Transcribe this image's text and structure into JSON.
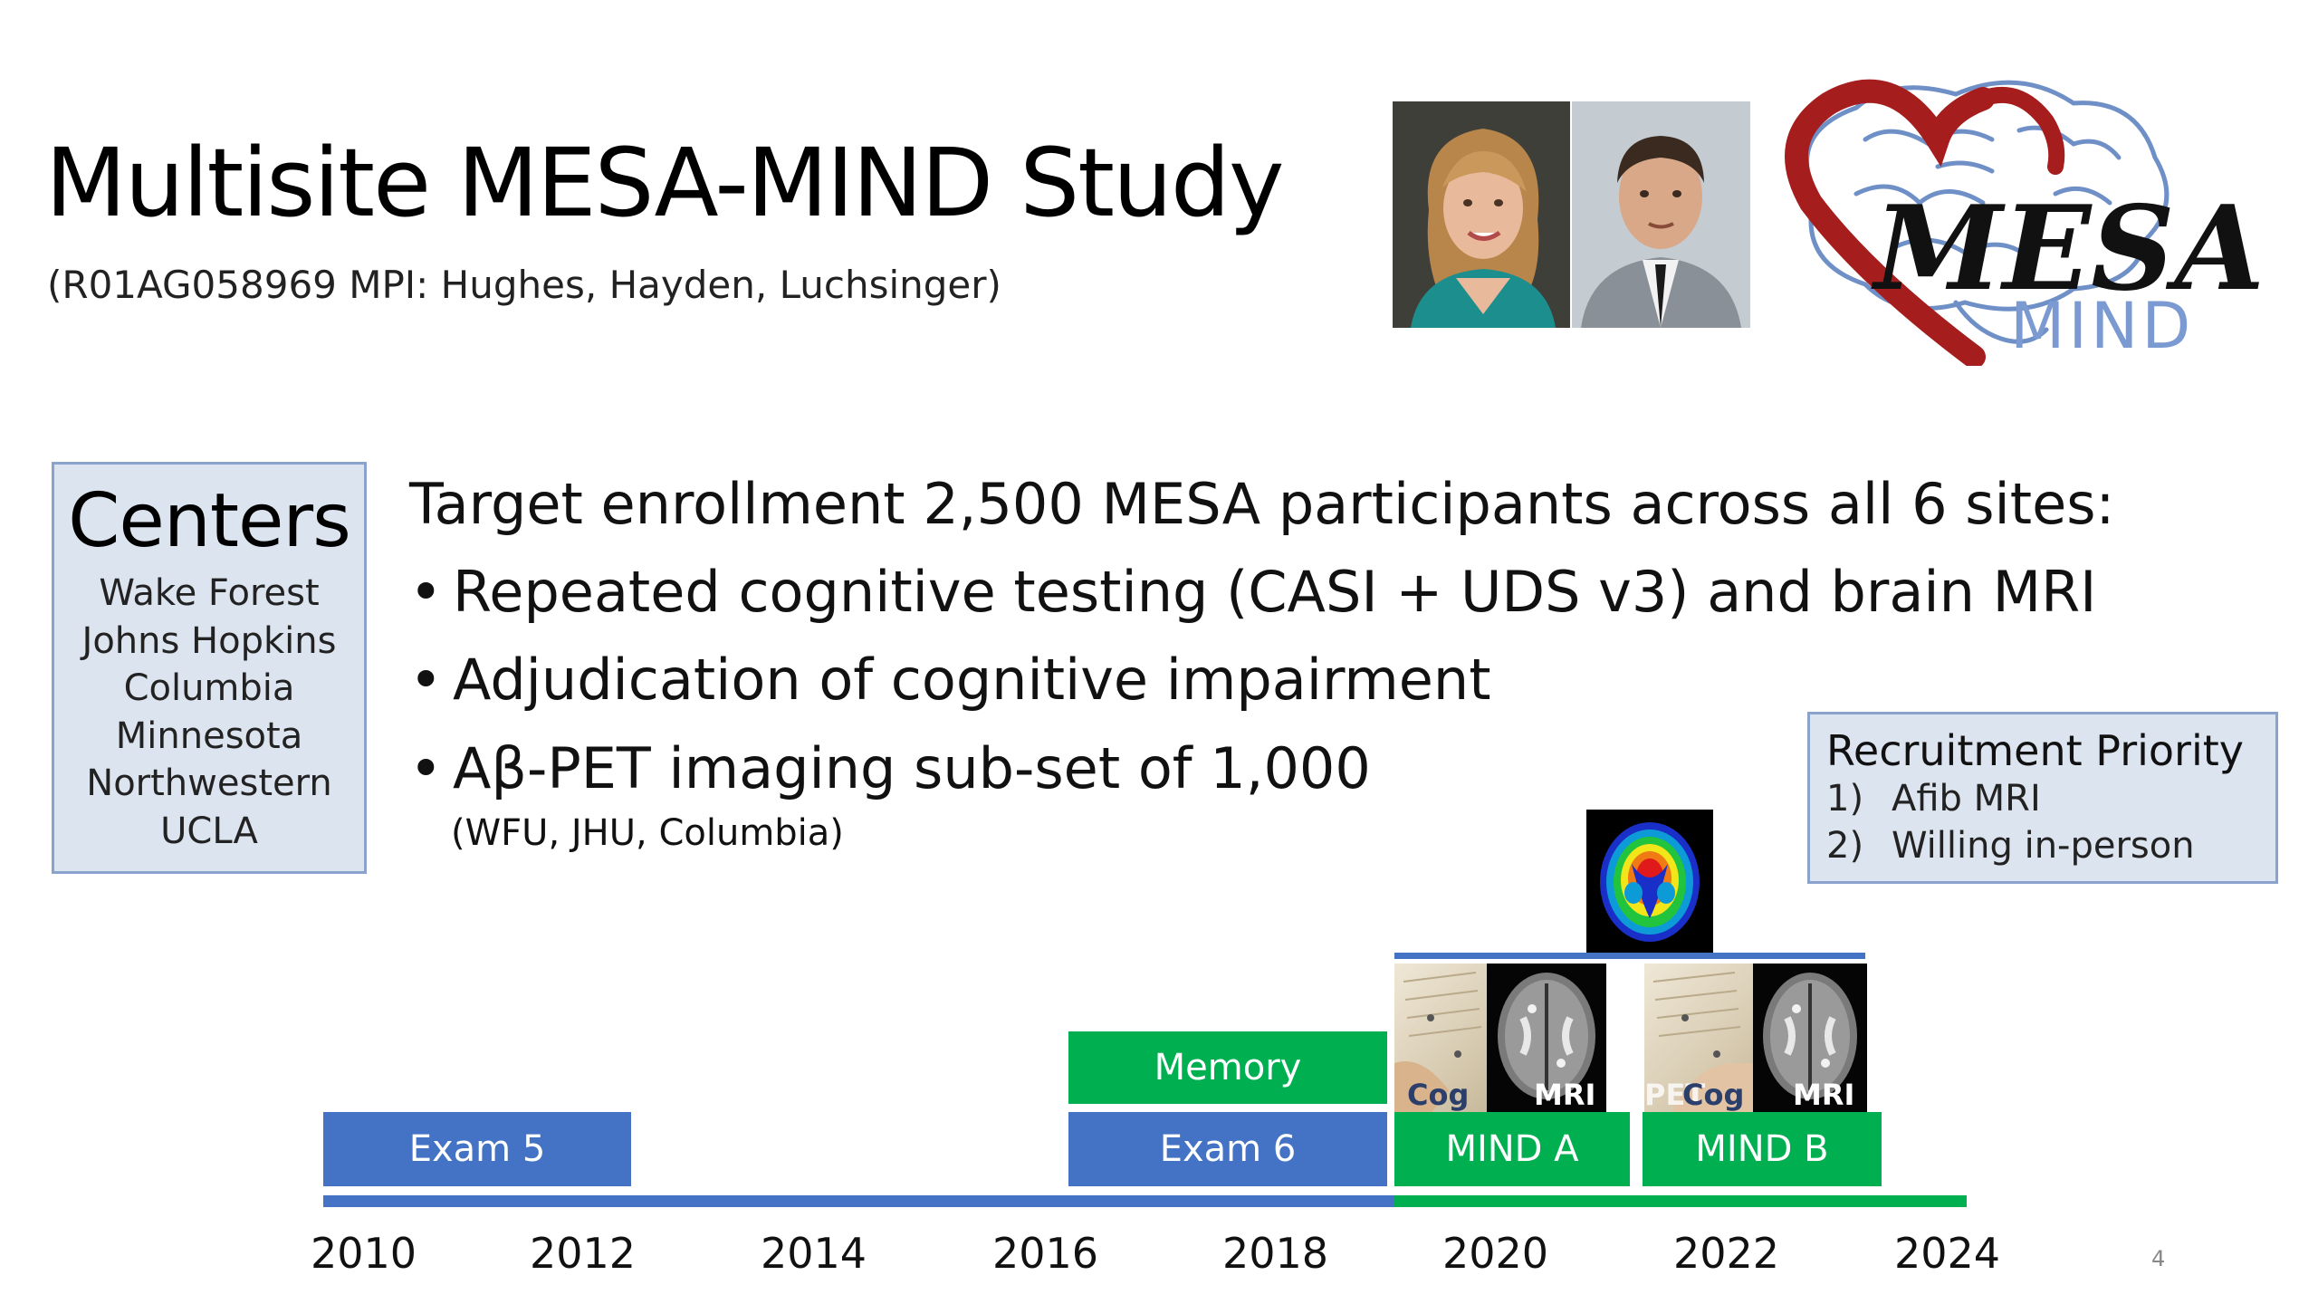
{
  "header": {
    "title": "Multisite MESA-MIND Study",
    "subtitle": "(R01AG058969 MPI: Hughes, Hayden, Luchsinger)"
  },
  "logo": {
    "word": "MESA",
    "subword": "MIND",
    "colors": {
      "heart": "#a51d1d",
      "brain": "#6f8fc7",
      "word": "#111111",
      "subword": "#7b9ad1"
    }
  },
  "centers": {
    "title": "Centers",
    "items": [
      "Wake Forest",
      "Johns Hopkins",
      "Columbia",
      "Minnesota",
      "Northwestern",
      "UCLA"
    ]
  },
  "main": {
    "target": "Target enrollment  2,500 MESA participants across all 6 sites:",
    "bullets": [
      "Repeated cognitive testing (CASI + UDS v3) and brain MRI",
      "Adjudication of cognitive impairment",
      "Aβ-PET imaging sub-set of 1,000"
    ],
    "bullet_symbol": "•",
    "note": "(WFU, JHU, Columbia)"
  },
  "recruitment": {
    "title": "Recruitment Priority",
    "items": [
      {
        "num": "1)",
        "text": "Afib MRI"
      },
      {
        "num": "2)",
        "text": "Willing in-person"
      }
    ]
  },
  "timeline": {
    "bars": {
      "exam5": "Exam 5",
      "exam6": "Exam 6",
      "memory": "Memory",
      "minda": "MIND A",
      "mindb": "MIND B"
    },
    "tiles": {
      "cog_a": "Cog",
      "mri_a": "MRI",
      "pet_b": "PET",
      "cog_b": "Cog",
      "mri_b": "MRI"
    },
    "years": [
      "2010",
      "2012",
      "2014",
      "2016",
      "2018",
      "2020",
      "2022",
      "2024"
    ],
    "colors": {
      "blue": "#4472c4",
      "green": "#00b050"
    }
  },
  "page_number": "4"
}
